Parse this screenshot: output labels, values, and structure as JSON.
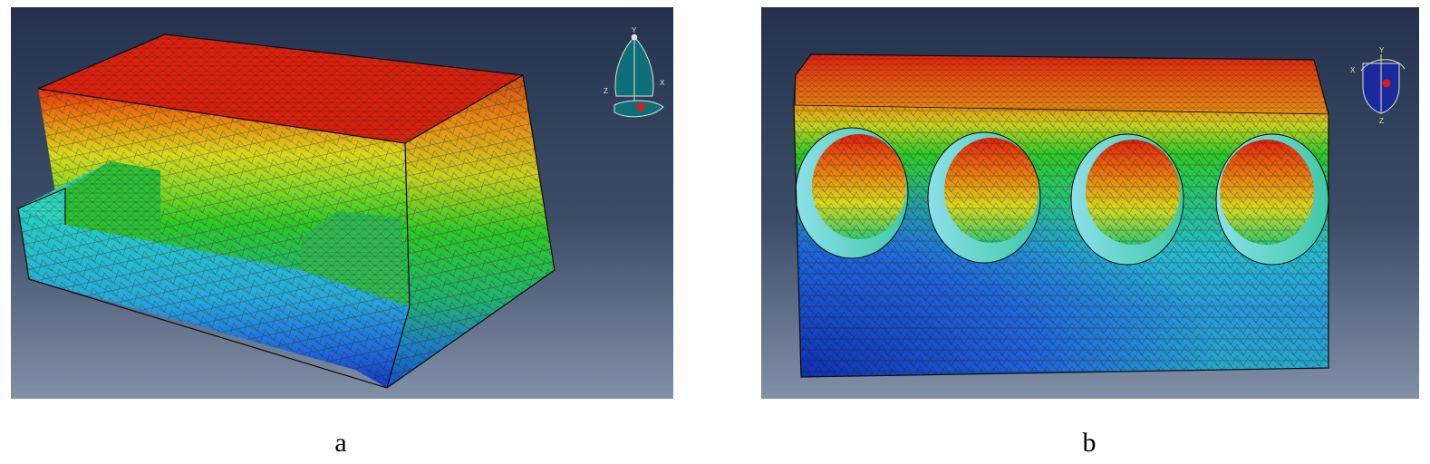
{
  "figure": {
    "panels": [
      {
        "id": "a",
        "caption": "a",
        "content": "fe-mesh-contour-block-with-step",
        "triad": {
          "labels": [
            "Y",
            "Z",
            "X"
          ]
        }
      },
      {
        "id": "b",
        "caption": "b",
        "content": "fe-mesh-contour-block-with-four-holes",
        "triad": {
          "labels": [
            "Y",
            "X",
            "Z"
          ]
        }
      }
    ],
    "colors": {
      "viewport_top": "#2a3a55",
      "viewport_bottom": "#7d8aa0",
      "contour_red": "#e0210f",
      "contour_orange": "#e87c10",
      "contour_yellow": "#d8d820",
      "contour_green": "#2fc82a",
      "contour_cyan": "#28d0c0",
      "contour_blue": "#2060d8",
      "contour_dark_blue": "#1030b0"
    }
  }
}
